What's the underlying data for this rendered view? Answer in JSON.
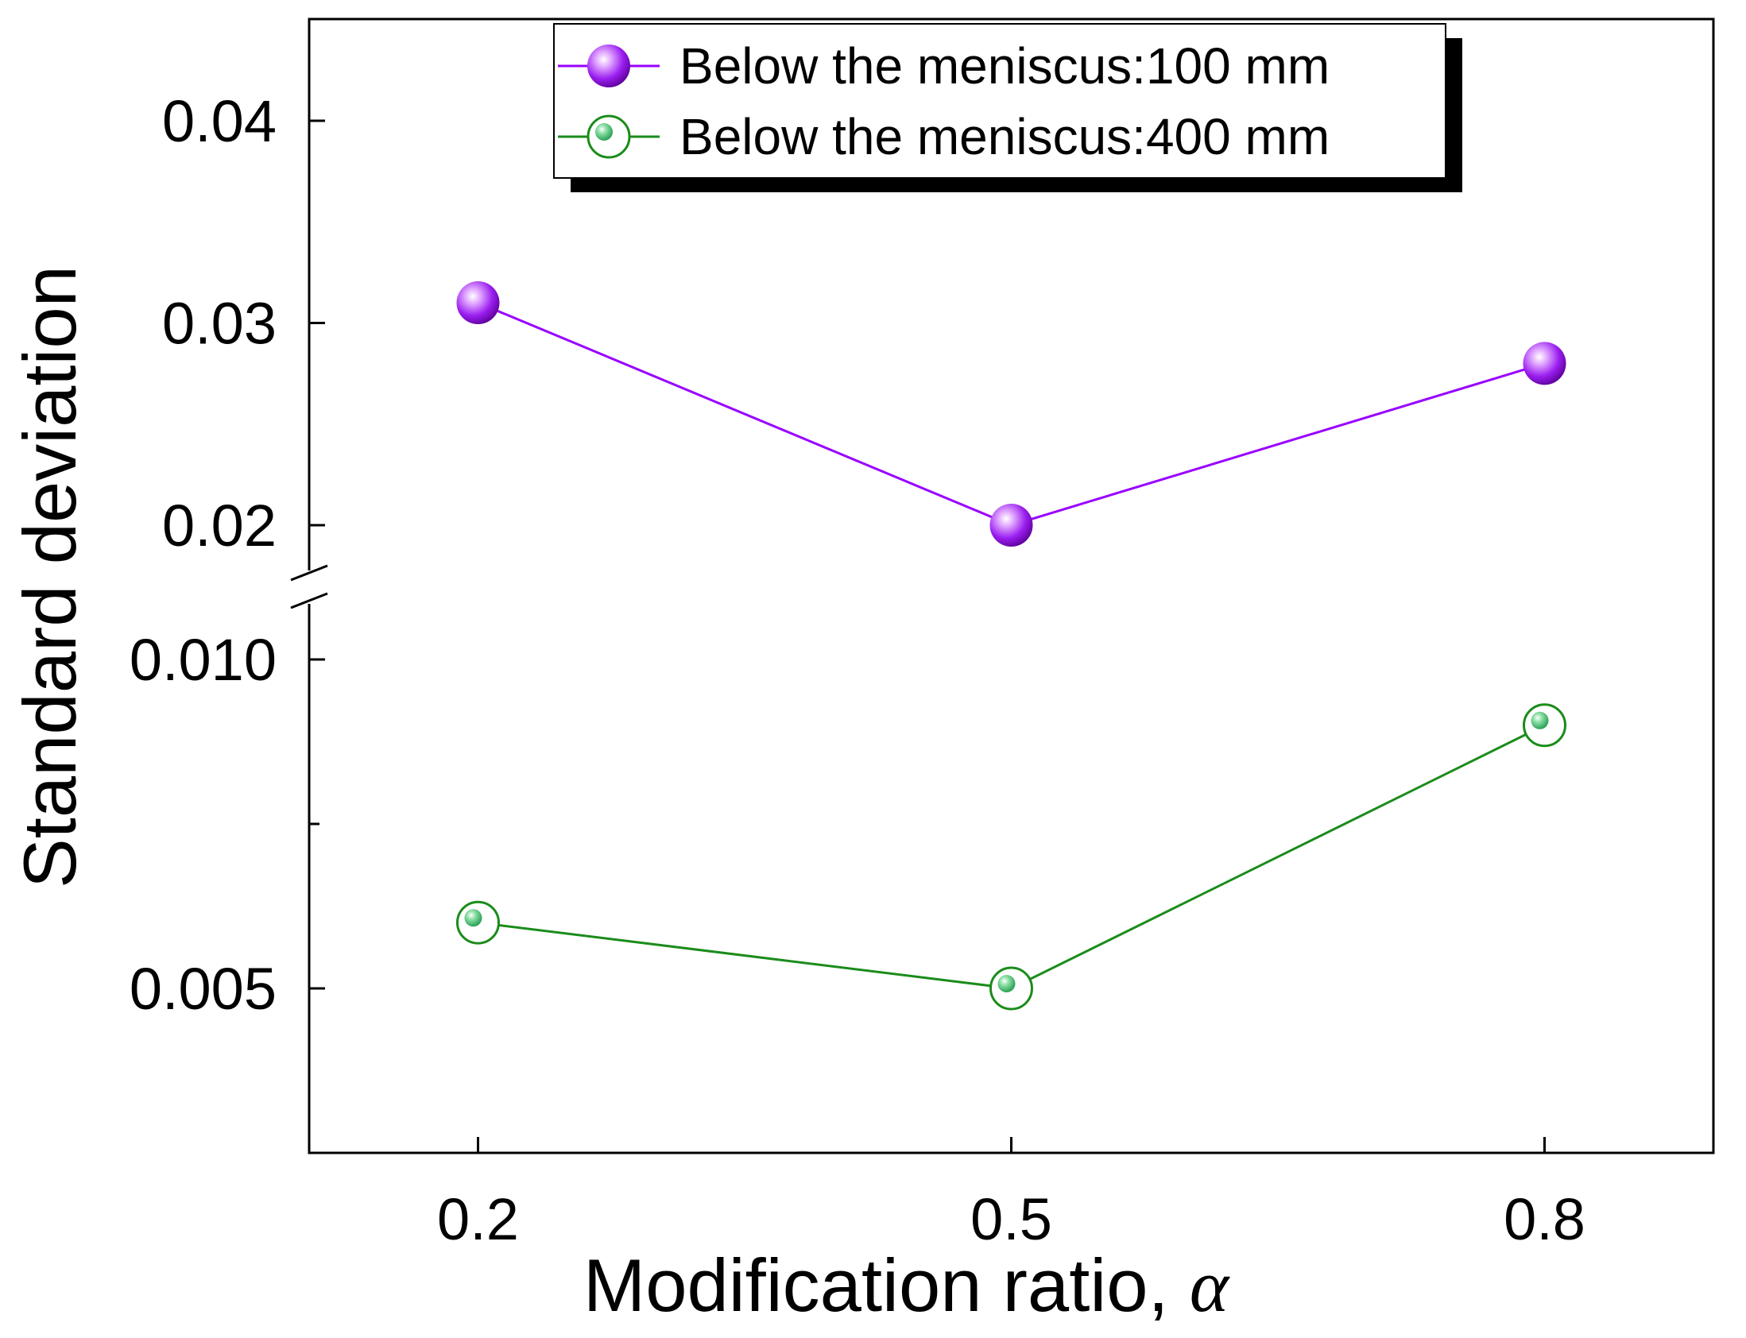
{
  "chart_data": {
    "type": "line",
    "title": "",
    "xlabel": "Modification ratio, ",
    "xlabel_symbol": "α",
    "ylabel": "Standard deviation",
    "x": [
      0.2,
      0.5,
      0.8
    ],
    "x_tick_labels": [
      "0.2",
      "0.5",
      "0.8"
    ],
    "xlim": [
      0.105,
      0.895
    ],
    "y_axis_break": true,
    "y_segments": {
      "upper": {
        "range": [
          0.0165,
          0.0445
        ],
        "ticks": [
          0.02,
          0.03,
          0.04
        ],
        "tick_labels": [
          "0.02",
          "0.03",
          "0.04"
        ]
      },
      "lower": {
        "range": [
          0.0035,
          0.0115
        ],
        "ticks": [
          0.005,
          0.0075,
          0.01
        ],
        "tick_labels": [
          "0.005",
          "",
          "0.010"
        ]
      }
    },
    "series": [
      {
        "name": "Below the meniscus:100 mm",
        "values": [
          0.031,
          0.02,
          0.028
        ],
        "color": "#9900ff",
        "marker": "filled-sphere"
      },
      {
        "name": "Below the meniscus:400 mm",
        "values": [
          0.006,
          0.005,
          0.009
        ],
        "color": "#1a8c1a",
        "marker": "hollow-circle"
      }
    ],
    "legend_position": "top-center",
    "grid": false
  }
}
